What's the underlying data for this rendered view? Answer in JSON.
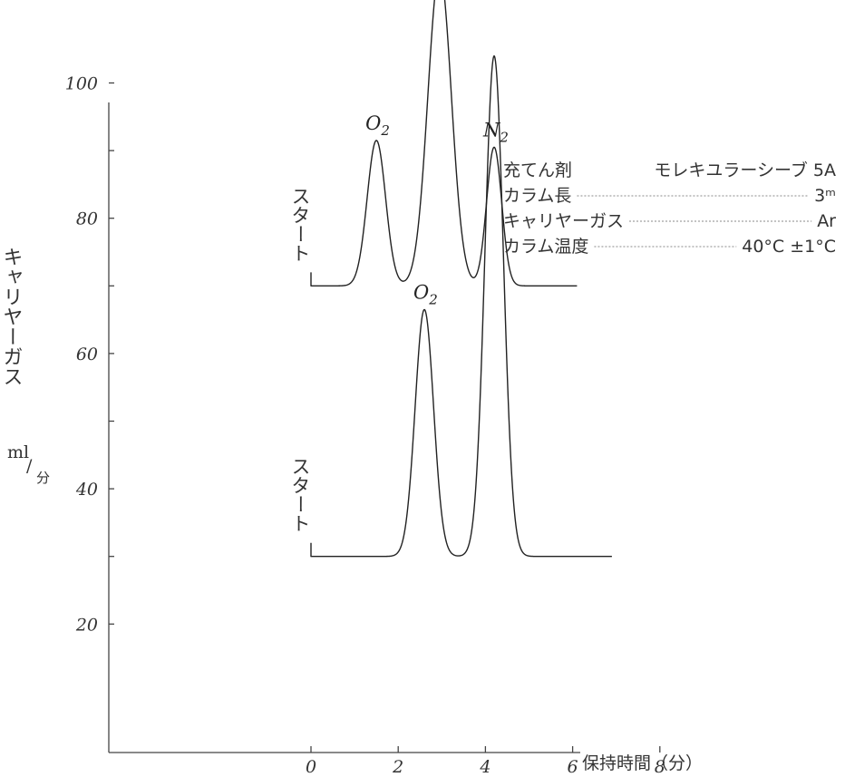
{
  "chart_data": {
    "type": "line",
    "title": "",
    "xlabel": "保持時間（分）",
    "ylabel": "キャリヤーガス",
    "yunit_prefix": "ml",
    "yunit_denominator": "分",
    "xlim": [
      -7.5,
      9
    ],
    "ylim": [
      10,
      107
    ],
    "x_ticks": [
      0,
      2,
      4,
      6,
      8
    ],
    "x_tick_labels": [
      "0",
      "2",
      "4",
      "6",
      "8"
    ],
    "y_ticks": [
      20,
      30,
      40,
      50,
      60,
      70,
      80,
      90,
      100
    ],
    "y_tick_labels": [
      "20",
      "",
      "40",
      "",
      "60",
      "",
      "80",
      "",
      "100"
    ],
    "start_label": "スタート",
    "series": [
      {
        "start_x": 0,
        "start_y": 70,
        "baseline": 70,
        "end_x": 6.1,
        "peaks": [
          {
            "label": "O",
            "sub": "2",
            "x": 1.5,
            "height": 91.5,
            "halfwidth": 0.55
          },
          {
            "label": "N",
            "sub": "2",
            "x": 2.95,
            "height": 116.5,
            "halfwidth": 0.7
          },
          {
            "label": "N",
            "sub": "2",
            "x": 4.2,
            "height": 90.5,
            "halfwidth": 0.45
          }
        ]
      },
      {
        "start_x": 0,
        "start_y": 30,
        "baseline": 30,
        "end_x": 6.9,
        "peaks": [
          {
            "label": "O",
            "sub": "2",
            "x": 2.6,
            "height": 66.5,
            "halfwidth": 0.55
          },
          {
            "label": "",
            "sub": "",
            "x": 4.2,
            "height": 104,
            "halfwidth": 0.55
          }
        ]
      }
    ],
    "conditions": [
      {
        "label": "充てん剤",
        "value": "モレキユラーシーブ 5A",
        "leader": false
      },
      {
        "label": "カラム長",
        "value": "3ᵐ",
        "leader": true
      },
      {
        "label": "キャリヤーガス",
        "value": "Ar",
        "leader": true
      },
      {
        "label": "カラム温度",
        "value": "40°C ±1°C",
        "leader": true
      }
    ]
  }
}
